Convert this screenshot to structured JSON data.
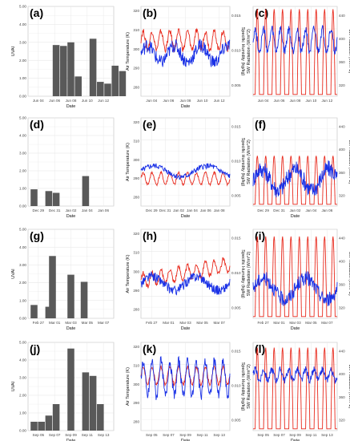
{
  "chart_data": [
    {
      "panel": "a",
      "type": "bar",
      "label": "(a)",
      "xlabel": "Date",
      "ylabel": "UVAI",
      "ylim": [
        0,
        5
      ],
      "yticks": [
        "0.00",
        "1.00",
        "2.00",
        "3.00",
        "4.00",
        "5.00"
      ],
      "xticks": [
        "Jun 04",
        "Jun 06",
        "Jun 08",
        "Jun 10",
        "Jun 12"
      ],
      "x": [
        3,
        4,
        5,
        6,
        8,
        9,
        10,
        11,
        12
      ],
      "values": [
        2.85,
        2.8,
        3.0,
        1.1,
        3.2,
        0.8,
        0.7,
        1.7,
        1.4
      ]
    },
    {
      "panel": "b",
      "type": "line",
      "label": "(b)",
      "xlabel": "Date",
      "ylabel": "Air Temperature (K)",
      "y2label": "Specific Humidity (kg/kg)",
      "ylim": [
        275,
        320
      ],
      "yticks": [
        "280",
        "290",
        "300",
        "310",
        "320"
      ],
      "y2ticks": [
        "0.005",
        "0.010",
        "0.015"
      ],
      "xticks": [
        "Jun 04",
        "Jun 06",
        "Jun 08",
        "Jun 10",
        "Jun 12"
      ],
      "series": [
        {
          "axis": "left",
          "color": "#e8291c",
          "mean": 303,
          "amp": 4.5,
          "period": 1,
          "noise": 1.5
        },
        {
          "axis": "right",
          "color": "#1a31e6",
          "mean": 0.0095,
          "amp": 0.0012,
          "period": 3,
          "noise": 0.001
        }
      ]
    },
    {
      "panel": "c",
      "type": "line",
      "label": "(c)",
      "y2label": "LW Radiation (W/m^2)",
      "ylabel": "SW Radiation (W/m^2)",
      "ylim": [
        0,
        1000
      ],
      "y2ticks": [
        "320",
        "360",
        "400",
        "440"
      ],
      "xticks": [
        "Jun 04",
        "Jun 06",
        "Jun 08",
        "Jun 10",
        "Jun 12"
      ],
      "series": [
        {
          "axis": "left",
          "color": "#e8291c",
          "kind": "sw",
          "peak": 0.95
        },
        {
          "axis": "right",
          "color": "#1a31e6",
          "mean": 0.62,
          "amp": 0.12,
          "period": 1,
          "noise": 0.05
        }
      ]
    },
    {
      "panel": "d",
      "type": "bar",
      "label": "(d)",
      "xlabel": "Date",
      "ylabel": "",
      "ylim": [
        0,
        5
      ],
      "yticks": [
        "0.00",
        "1.00",
        "2.00",
        "3.00",
        "4.00",
        "5.00"
      ],
      "xticks": [
        "Dec 29",
        "Dec 31",
        "Jan 02",
        "Jan 04",
        "Jan 06"
      ],
      "x": [
        0,
        2,
        3,
        7
      ],
      "values": [
        0.95,
        0.85,
        0.75,
        1.7
      ]
    },
    {
      "panel": "e",
      "type": "line",
      "label": "(e)",
      "xlabel": "Date",
      "ylabel": "Air Temperature (K)",
      "y2label": "Specific Humidity (kg/kg)",
      "ylim": [
        275,
        320
      ],
      "yticks": [
        "280",
        "290",
        "300",
        "310",
        "320"
      ],
      "y2ticks": [
        "0.005",
        "0.010",
        "0.015"
      ],
      "xticks": [
        "Dec 29",
        "Dec 31",
        "Jan 02",
        "Jan 04",
        "Jan 06",
        "Jan 08"
      ],
      "series": [
        {
          "axis": "left",
          "color": "#e8291c",
          "mean": 289,
          "amp": 3,
          "period": 1,
          "noise": 0.7
        },
        {
          "axis": "right",
          "color": "#1a31e6",
          "mean": 0.0085,
          "amp": 0.0008,
          "period": 6,
          "noise": 0.0004
        }
      ]
    },
    {
      "panel": "f",
      "type": "line",
      "label": "(f)",
      "xlabel": "Date",
      "y2label": "LW Radiation (W/m^2)",
      "ylabel": "SW Radiation (W/m^2)",
      "ylim": [
        0,
        1000
      ],
      "y2ticks": [
        "320",
        "360",
        "400",
        "440"
      ],
      "xticks": [
        "Dec 29",
        "Dec 31",
        "Jan 02",
        "Jan 04",
        "Jan 06"
      ],
      "series": [
        {
          "axis": "left",
          "color": "#e8291c",
          "kind": "sw",
          "peak": 0.55
        },
        {
          "axis": "right",
          "color": "#1a31e6",
          "mean": 0.3,
          "amp": 0.12,
          "period": 4,
          "noise": 0.1
        }
      ]
    },
    {
      "panel": "g",
      "type": "bar",
      "label": "(g)",
      "xlabel": "Date",
      "ylabel": "UVAI",
      "ylim": [
        0,
        5
      ],
      "yticks": [
        "0.00",
        "1.00",
        "2.00",
        "3.00",
        "4.00",
        "5.00"
      ],
      "xticks": [
        "Feb 27",
        "Mar 01",
        "Mar 03",
        "Mar 05",
        "Mar 07"
      ],
      "x": [
        0,
        2,
        2.5,
        5,
        6.8
      ],
      "values": [
        0.75,
        0.65,
        3.5,
        2.45,
        2.05
      ]
    },
    {
      "panel": "h",
      "type": "line",
      "label": "(h)",
      "xlabel": "Date",
      "ylabel": "Air Temperature (K)",
      "y2label": "Specific Humidity (kg/kg)",
      "ylim": [
        275,
        320
      ],
      "yticks": [
        "280",
        "290",
        "300",
        "310",
        "320"
      ],
      "y2ticks": [
        "0.005",
        "0.010",
        "0.015"
      ],
      "xticks": [
        "Feb 27",
        "Mar 01",
        "Mar 03",
        "Mar 05",
        "Mar 07"
      ],
      "series": [
        {
          "axis": "left",
          "color": "#e8291c",
          "mean": 294,
          "amp": 3.5,
          "period": 1,
          "noise": 1.2,
          "trend": 8
        },
        {
          "axis": "right",
          "color": "#1a31e6",
          "mean": 0.0085,
          "amp": 0.001,
          "period": 5,
          "noise": 0.0007
        }
      ]
    },
    {
      "panel": "i",
      "type": "line",
      "label": "(i)",
      "xlabel": "Date",
      "y2label": "LW Radiation (W/m^2)",
      "ylabel": "SW Radiation (W/m^2)",
      "ylim": [
        0,
        1000
      ],
      "y2ticks": [
        "320",
        "360",
        "400",
        "440"
      ],
      "xticks": [
        "Feb 27",
        "Mar 01",
        "Mar 03",
        "Mar 05",
        "Mar 07"
      ],
      "series": [
        {
          "axis": "left",
          "color": "#e8291c",
          "kind": "sw",
          "peak": 0.9
        },
        {
          "axis": "right",
          "color": "#1a31e6",
          "mean": 0.33,
          "amp": 0.12,
          "period": 5,
          "noise": 0.08
        }
      ]
    },
    {
      "panel": "j",
      "type": "bar",
      "label": "(j)",
      "xlabel": "Date",
      "ylabel": "UVAI",
      "ylim": [
        0,
        5
      ],
      "yticks": [
        "0.00",
        "1.00",
        "2.00",
        "3.00",
        "4.00",
        "5.00"
      ],
      "xticks": [
        "Sep 05",
        "Sep 07",
        "Sep 09",
        "Sep 11",
        "Sep 13"
      ],
      "x": [
        0,
        1,
        2,
        3,
        5,
        7,
        8,
        9
      ],
      "values": [
        0.5,
        0.5,
        0.85,
        1.5,
        4.65,
        3.3,
        3.1,
        1.5
      ]
    },
    {
      "panel": "k",
      "type": "line",
      "label": "(k)",
      "xlabel": "Date",
      "ylabel": "Air Temperature (K)",
      "y2label": "Specific Humidity (kg/kg)",
      "ylim": [
        275,
        320
      ],
      "yticks": [
        "280",
        "290",
        "300",
        "310",
        "320"
      ],
      "y2ticks": [
        "0.005",
        "0.010",
        "0.015"
      ],
      "xticks": [
        "Sep 05",
        "Sep 07",
        "Sep 09",
        "Sep 11",
        "Sep 13"
      ],
      "series": [
        {
          "axis": "left",
          "color": "#e8291c",
          "mean": 303,
          "amp": 4.5,
          "period": 1,
          "noise": 0.8
        },
        {
          "axis": "right",
          "color": "#1a31e6",
          "mean": 0.011,
          "amp": 0.0025,
          "period": 1,
          "noise": 0.0008
        }
      ]
    },
    {
      "panel": "l",
      "type": "line",
      "label": "(l)",
      "xlabel": "Date",
      "y2label": "LW Radiation (W/m^2)",
      "ylabel": "SW Radiation (W/m^2)",
      "ylim": [
        0,
        1000
      ],
      "y2ticks": [
        "320",
        "360",
        "400",
        "440"
      ],
      "xticks": [
        "Sep 05",
        "Sep 07",
        "Sep 09",
        "Sep 11",
        "Sep 13"
      ],
      "series": [
        {
          "axis": "left",
          "color": "#e8291c",
          "kind": "sw",
          "peak": 0.92
        },
        {
          "axis": "right",
          "color": "#1a31e6",
          "mean": 0.63,
          "amp": 0.06,
          "period": 1,
          "noise": 0.04
        }
      ]
    }
  ]
}
